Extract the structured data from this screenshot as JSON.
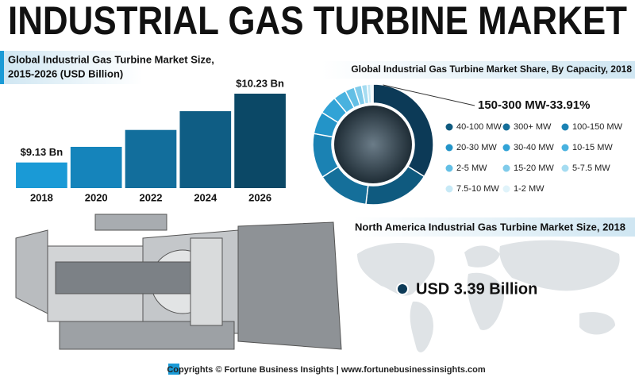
{
  "title": "INDUSTRIAL GAS TURBINE MARKET",
  "chart_data": [
    {
      "type": "bar",
      "title_lines": [
        "Global Industrial Gas Turbine Market Size,",
        "2015-2026 (USD Billion)"
      ],
      "categories": [
        "2018",
        "2020",
        "2022",
        "2024",
        "2026"
      ],
      "values": [
        9.13,
        9.38,
        9.65,
        9.95,
        10.23
      ],
      "value_labels": [
        "$9.13 Bn",
        null,
        null,
        null,
        "$10.23 Bn"
      ],
      "colors": [
        "#1a9ad6",
        "#1584bb",
        "#126e9c",
        "#0f5d84",
        "#0b4866"
      ],
      "ylim": [
        8.72,
        10.23
      ]
    },
    {
      "type": "pie",
      "title": "Global Industrial Gas Turbine Market Share, By Capacity, 2018",
      "categories": [
        null,
        "40-100 MW",
        "300+ MW",
        "100-150 MW",
        "20-30 MW",
        "30-40 MW",
        "10-15 MW",
        "2-5 MW",
        "15-20 MW",
        "5-7.5 MW",
        "7.5-10 MW",
        "1-2 MW"
      ],
      "values": [
        33.91,
        18,
        14,
        12,
        6,
        5,
        3.5,
        2.5,
        2,
        1.5,
        1,
        0.59
      ],
      "value_labels": [
        "150-300 MW-33.91%",
        null,
        null,
        null,
        null,
        null,
        null,
        null,
        null,
        null,
        null,
        null
      ],
      "colors": [
        "#0c3a57",
        "#0f5a7f",
        "#156f9a",
        "#1b82b3",
        "#2394c8",
        "#31a3d6",
        "#49b2df",
        "#63bfe5",
        "#80cbea",
        "#a5dcf1",
        "#c7e9f6",
        "#e0f3fa"
      ]
    }
  ],
  "map": {
    "title": "North America Industrial Gas Turbine Market Size, 2018",
    "value_text": "USD 3.39 Billion"
  },
  "footer": "Copyrights © Fortune Business Insights | www.fortunebusinessinsights.com"
}
